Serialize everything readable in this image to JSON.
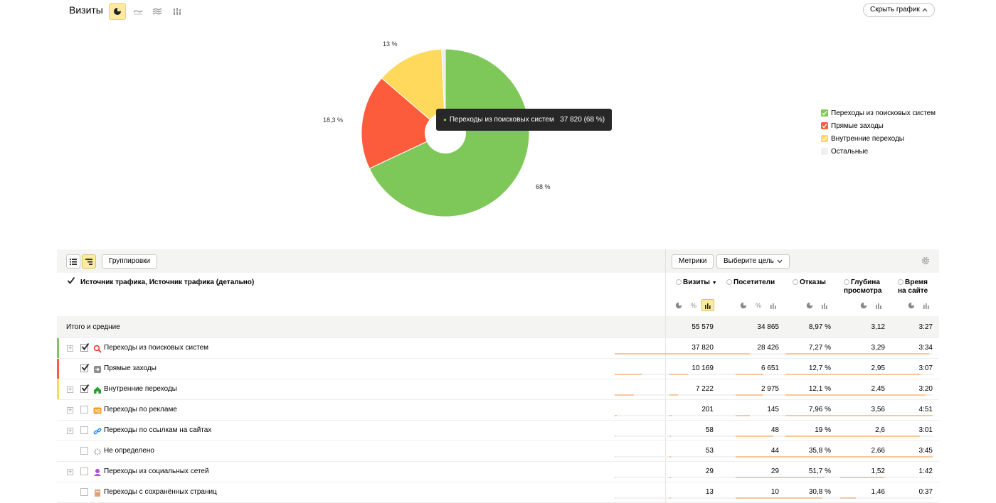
{
  "header": {
    "title": "Визиты",
    "hide_chart_label": "Скрыть график"
  },
  "chart_data": {
    "type": "pie",
    "slices": [
      {
        "name": "Переходы из поисковых систем",
        "value": 68,
        "color": "#7ec859"
      },
      {
        "name": "Прямые заходы",
        "value": 18.3,
        "color": "#fd5c3c"
      },
      {
        "name": "Внутренние переходы",
        "value": 13,
        "color": "#ffd95b"
      },
      {
        "name": "Остальные",
        "value": 0.7,
        "color": "#ececec"
      }
    ],
    "labels": {
      "search": "68 %",
      "direct": "18,3 %",
      "internal": "13 %"
    },
    "tooltip": {
      "name": "Переходы из поисковых систем",
      "value": "37 820 (68 %)"
    },
    "legend_position": "right"
  },
  "legend": [
    {
      "label": "Переходы из поисковых систем",
      "color": "#7ec859",
      "checked": true
    },
    {
      "label": "Прямые заходы",
      "color": "#fd5c3c",
      "checked": true
    },
    {
      "label": "Внутренние переходы",
      "color": "#ffd95b",
      "checked": true
    },
    {
      "label": "Остальные",
      "color": "#f0f0f0",
      "checked": false
    }
  ],
  "toolbar": {
    "groupings_label": "Группировки",
    "metrics_label": "Метрики",
    "goal_label": "Выберите цель"
  },
  "table": {
    "dimensions_title": "Источник трафика, Источник трафика (детально)",
    "columns": {
      "visits": "Визиты",
      "visitors": "Посетители",
      "bounces": "Отказы",
      "depth_1": "Глубина",
      "depth_2": "просмотра",
      "time_1": "Время",
      "time_2": "на сайте"
    },
    "total": {
      "label": "Итого и средние",
      "visits": "55 579",
      "visitors": "34 865",
      "bounces": "8,97 %",
      "depth": "3,12",
      "time": "3:27"
    },
    "rows": [
      {
        "label": "Переходы из поисковых систем",
        "visits": "37 820",
        "visitors": "28 426",
        "bounces": "7,27 %",
        "depth": "3,29",
        "time": "3:34"
      },
      {
        "label": "Прямые заходы",
        "visits": "10 169",
        "visitors": "6 651",
        "bounces": "12,7 %",
        "depth": "2,95",
        "time": "3:07"
      },
      {
        "label": "Внутренние переходы",
        "visits": "7 222",
        "visitors": "2 975",
        "bounces": "12,1 %",
        "depth": "2,45",
        "time": "3:20"
      },
      {
        "label": "Переходы по рекламе",
        "visits": "201",
        "visitors": "145",
        "bounces": "7,96 %",
        "depth": "3,56",
        "time": "4:51"
      },
      {
        "label": "Переходы по ссылкам на сайтах",
        "visits": "58",
        "visitors": "48",
        "bounces": "19 %",
        "depth": "2,6",
        "time": "3:01"
      },
      {
        "label": "Не определено",
        "visits": "53",
        "visitors": "44",
        "bounces": "35,8 %",
        "depth": "2,66",
        "time": "3:45"
      },
      {
        "label": "Переходы из социальных сетей",
        "visits": "29",
        "visitors": "29",
        "bounces": "51,7 %",
        "depth": "1,52",
        "time": "1:42"
      },
      {
        "label": "Переходы с сохранённых страниц",
        "visits": "13",
        "visitors": "10",
        "bounces": "30,8 %",
        "depth": "1,46",
        "time": "0:37"
      }
    ]
  }
}
